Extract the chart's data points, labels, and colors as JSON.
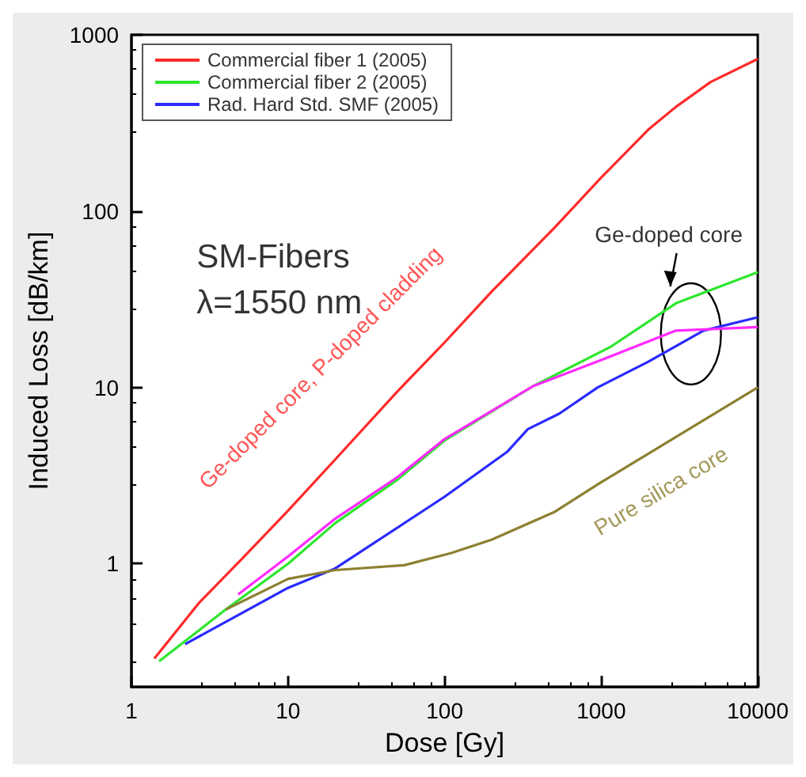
{
  "chart_data": {
    "type": "line",
    "xlabel": "Dose [Gy]",
    "ylabel": "Induced Loss [dB/km]",
    "log": "xy",
    "xlim": [
      1,
      10000
    ],
    "xticks": [
      1,
      10,
      100,
      1000,
      10000
    ],
    "ylim": [
      0.2,
      1000
    ],
    "yticks": [
      1,
      10,
      100,
      1000
    ],
    "grid": false,
    "legend": "top left",
    "marker": "none",
    "line_style": "solid",
    "series": [
      {
        "name": "Commercial fiber 1 (2005)",
        "color": "#ff2a2a",
        "x": [
          1.4,
          2.7,
          5,
          10,
          20,
          50,
          100,
          200,
          500,
          1000,
          2000,
          3000,
          5000,
          10000
        ],
        "values": [
          0.29,
          0.6,
          1.05,
          2.0,
          3.9,
          9.5,
          18,
          35,
          80,
          155,
          290,
          390,
          540,
          730
        ]
      },
      {
        "name": "Commercial fiber 2 (2005)",
        "color": "#2ee62e",
        "x": [
          1.5,
          4,
          10,
          20,
          50,
          100,
          370,
          1150,
          3000,
          10000
        ],
        "values": [
          0.28,
          0.55,
          1.0,
          1.7,
          3.0,
          5.0,
          10.2,
          17,
          30,
          45
        ]
      },
      {
        "name": "Rad. Hard Std. SMF (2005)",
        "color": "#2a2aff",
        "x": [
          2.2,
          10,
          20,
          100,
          250,
          340,
          540,
          950,
          2000,
          4500,
          10000
        ],
        "values": [
          0.35,
          0.73,
          0.94,
          2.4,
          4.3,
          5.8,
          7.1,
          10,
          14,
          21,
          25
        ]
      },
      {
        "color": "#ff2aff",
        "x": [
          4.8,
          10,
          20,
          50,
          100,
          370,
          1000,
          3000,
          10000
        ],
        "values": [
          0.67,
          1.1,
          1.8,
          3.1,
          5.1,
          10.2,
          14.3,
          21,
          22
        ]
      },
      {
        "color": "#8c8030",
        "x": [
          4,
          10,
          20,
          55,
          110,
          200,
          500,
          1000,
          10000
        ],
        "values": [
          0.55,
          0.82,
          0.92,
          0.98,
          1.15,
          1.37,
          1.96,
          2.9,
          10
        ]
      }
    ],
    "annotations": [
      "SM-Fibers",
      "λ=1550 nm",
      "Ge-doped core, P-doped cladding",
      "Pure silica core",
      "Ge-doped core"
    ]
  }
}
